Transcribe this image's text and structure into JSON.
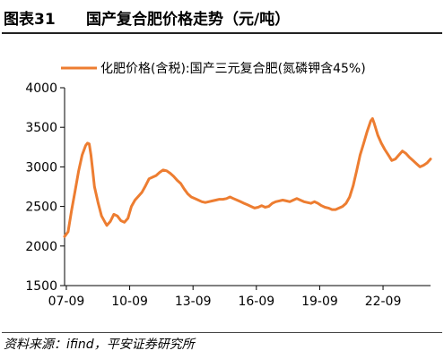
{
  "header": {
    "label": "图表31",
    "title": "国产复合肥价格走势（元/吨）"
  },
  "source": "资料来源：ifind，平安证券研究所",
  "colors": {
    "series": "#ed7d31",
    "axis": "#000000"
  },
  "chart_data": {
    "type": "line",
    "title": "",
    "xlabel": "",
    "ylabel": "",
    "ylim": [
      1500,
      4000
    ],
    "yticks": [
      1500,
      2000,
      2500,
      3000,
      3500,
      4000
    ],
    "xlim": [
      "2007-08",
      "2024-12"
    ],
    "xticks": [
      {
        "label": "07-09",
        "date": "2007-09"
      },
      {
        "label": "10-09",
        "date": "2010-09"
      },
      {
        "label": "13-09",
        "date": "2013-09"
      },
      {
        "label": "16-09",
        "date": "2016-09"
      },
      {
        "label": "19-09",
        "date": "2019-09"
      },
      {
        "label": "22-09",
        "date": "2022-09"
      }
    ],
    "grid": false,
    "legend_position": "top",
    "series": [
      {
        "name": "化肥价格(含税):国产三元复合肥(氮磷钾含45%)",
        "color": "#ed7d31",
        "points": [
          [
            "2007-08",
            2120
          ],
          [
            "2007-10",
            2180
          ],
          [
            "2007-12",
            2450
          ],
          [
            "2008-02",
            2700
          ],
          [
            "2008-04",
            2950
          ],
          [
            "2008-06",
            3150
          ],
          [
            "2008-08",
            3270
          ],
          [
            "2008-09",
            3300
          ],
          [
            "2008-10",
            3290
          ],
          [
            "2008-11",
            3150
          ],
          [
            "2008-12",
            2950
          ],
          [
            "2009-01",
            2750
          ],
          [
            "2009-03",
            2550
          ],
          [
            "2009-05",
            2380
          ],
          [
            "2009-07",
            2300
          ],
          [
            "2009-08",
            2260
          ],
          [
            "2009-10",
            2310
          ],
          [
            "2009-12",
            2400
          ],
          [
            "2010-02",
            2380
          ],
          [
            "2010-04",
            2320
          ],
          [
            "2010-06",
            2300
          ],
          [
            "2010-08",
            2350
          ],
          [
            "2010-10",
            2500
          ],
          [
            "2010-12",
            2580
          ],
          [
            "2011-02",
            2630
          ],
          [
            "2011-04",
            2680
          ],
          [
            "2011-06",
            2760
          ],
          [
            "2011-08",
            2850
          ],
          [
            "2011-10",
            2870
          ],
          [
            "2011-12",
            2890
          ],
          [
            "2012-02",
            2930
          ],
          [
            "2012-04",
            2960
          ],
          [
            "2012-06",
            2950
          ],
          [
            "2012-08",
            2920
          ],
          [
            "2012-10",
            2880
          ],
          [
            "2012-12",
            2830
          ],
          [
            "2013-02",
            2790
          ],
          [
            "2013-04",
            2720
          ],
          [
            "2013-06",
            2660
          ],
          [
            "2013-08",
            2620
          ],
          [
            "2013-10",
            2600
          ],
          [
            "2013-12",
            2580
          ],
          [
            "2014-02",
            2560
          ],
          [
            "2014-04",
            2550
          ],
          [
            "2014-06",
            2560
          ],
          [
            "2014-08",
            2570
          ],
          [
            "2014-10",
            2580
          ],
          [
            "2014-12",
            2590
          ],
          [
            "2015-02",
            2590
          ],
          [
            "2015-04",
            2600
          ],
          [
            "2015-06",
            2620
          ],
          [
            "2015-08",
            2600
          ],
          [
            "2015-10",
            2580
          ],
          [
            "2015-12",
            2560
          ],
          [
            "2016-02",
            2540
          ],
          [
            "2016-04",
            2520
          ],
          [
            "2016-06",
            2500
          ],
          [
            "2016-08",
            2480
          ],
          [
            "2016-10",
            2490
          ],
          [
            "2016-12",
            2510
          ],
          [
            "2017-02",
            2490
          ],
          [
            "2017-04",
            2500
          ],
          [
            "2017-06",
            2540
          ],
          [
            "2017-08",
            2560
          ],
          [
            "2017-10",
            2570
          ],
          [
            "2017-12",
            2580
          ],
          [
            "2018-02",
            2570
          ],
          [
            "2018-04",
            2560
          ],
          [
            "2018-06",
            2580
          ],
          [
            "2018-08",
            2600
          ],
          [
            "2018-10",
            2580
          ],
          [
            "2018-12",
            2560
          ],
          [
            "2019-02",
            2550
          ],
          [
            "2019-04",
            2540
          ],
          [
            "2019-06",
            2560
          ],
          [
            "2019-08",
            2540
          ],
          [
            "2019-10",
            2510
          ],
          [
            "2019-12",
            2490
          ],
          [
            "2020-02",
            2480
          ],
          [
            "2020-04",
            2460
          ],
          [
            "2020-06",
            2460
          ],
          [
            "2020-08",
            2480
          ],
          [
            "2020-10",
            2500
          ],
          [
            "2020-12",
            2540
          ],
          [
            "2021-02",
            2620
          ],
          [
            "2021-04",
            2760
          ],
          [
            "2021-06",
            2950
          ],
          [
            "2021-08",
            3150
          ],
          [
            "2021-10",
            3300
          ],
          [
            "2021-12",
            3450
          ],
          [
            "2022-02",
            3580
          ],
          [
            "2022-03",
            3610
          ],
          [
            "2022-04",
            3550
          ],
          [
            "2022-06",
            3400
          ],
          [
            "2022-08",
            3300
          ],
          [
            "2022-10",
            3220
          ],
          [
            "2022-12",
            3150
          ],
          [
            "2023-02",
            3080
          ],
          [
            "2023-04",
            3100
          ],
          [
            "2023-06",
            3150
          ],
          [
            "2023-08",
            3200
          ],
          [
            "2023-10",
            3170
          ],
          [
            "2023-12",
            3120
          ],
          [
            "2024-02",
            3080
          ],
          [
            "2024-04",
            3040
          ],
          [
            "2024-06",
            3000
          ],
          [
            "2024-08",
            3020
          ],
          [
            "2024-10",
            3050
          ],
          [
            "2024-12",
            3100
          ]
        ]
      }
    ]
  }
}
